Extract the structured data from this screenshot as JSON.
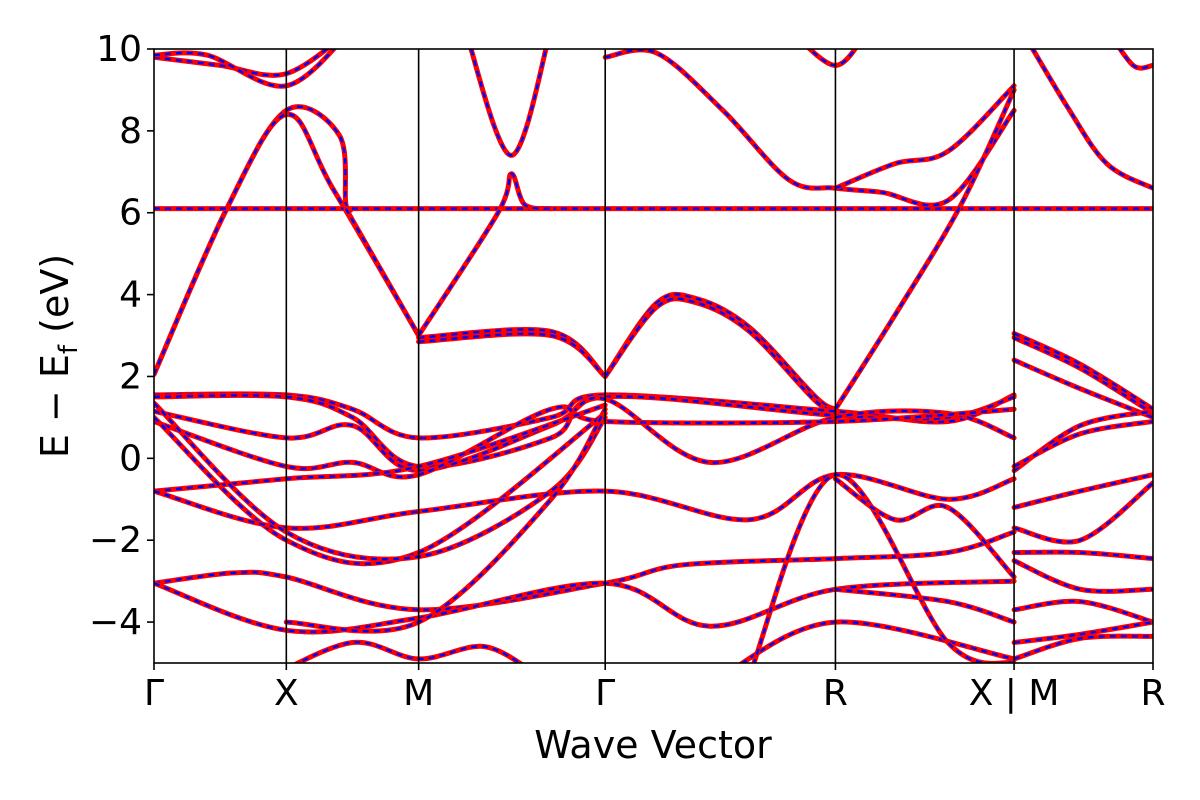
{
  "chart_data": {
    "type": "line",
    "title": "",
    "xlabel": "Wave Vector",
    "ylabel_parts": {
      "E": "E",
      "minus": "−",
      "Ef_main": "E",
      "Ef_sub": "f",
      "unit": "(eV)"
    },
    "ylim": [
      -5,
      10
    ],
    "xlim": [
      0,
      7.55
    ],
    "yticks": [
      -4,
      -2,
      0,
      2,
      4,
      6,
      8,
      10
    ],
    "ytick_labels": [
      "−4",
      "−2",
      "0",
      "2",
      "4",
      "6",
      "8",
      "10"
    ],
    "kpoints": [
      {
        "label": "Γ",
        "x": 0.0
      },
      {
        "label": "X",
        "x": 1.0
      },
      {
        "label": "M",
        "x": 2.0
      },
      {
        "label": "Γ",
        "x": 3.41
      },
      {
        "label": "R",
        "x": 5.15
      },
      {
        "label": "X | M",
        "x": 6.5
      },
      {
        "label": "R",
        "x": 7.55
      }
    ],
    "grid": false,
    "legend": "none",
    "colors": {
      "band_a": "#ff0000",
      "band_b": "#0000ff",
      "axis": "#000000"
    },
    "series": [
      {
        "style": "solid",
        "points": [
          [
            0,
            9.8
          ],
          [
            0.5,
            9.6
          ],
          [
            1,
            9.4
          ],
          [
            1.5,
            10.5
          ]
        ]
      },
      {
        "style": "solid",
        "points": [
          [
            0,
            9.85
          ],
          [
            0.4,
            9.85
          ],
          [
            1,
            9.1
          ],
          [
            1.5,
            10.5
          ]
        ]
      },
      {
        "style": "solid",
        "points": [
          [
            0,
            2.05
          ],
          [
            0.55,
            6.1
          ],
          [
            1,
            8.5
          ],
          [
            1.4,
            7.9
          ],
          [
            1.45,
            6.2
          ],
          [
            1.5,
            6.1
          ]
        ]
      },
      {
        "style": "solid",
        "points": [
          [
            0,
            2.05
          ],
          [
            0.55,
            6.1
          ],
          [
            1,
            8.4
          ],
          [
            1.35,
            6.6
          ],
          [
            2,
            3.0
          ]
        ]
      },
      {
        "style": "solid",
        "points": [
          [
            0,
            6.1
          ],
          [
            7.55,
            6.1
          ]
        ]
      },
      {
        "style": "solid",
        "points": [
          [
            1.45,
            6.1
          ],
          [
            2,
            3.0
          ]
        ]
      },
      {
        "style": "solid",
        "points": [
          [
            2,
            2.95
          ],
          [
            3,
            3.1
          ],
          [
            3.41,
            2.0
          ]
        ]
      },
      {
        "style": "solid",
        "points": [
          [
            2,
            2.85
          ],
          [
            3,
            3.0
          ],
          [
            3.41,
            2.0
          ]
        ]
      },
      {
        "style": "solid",
        "points": [
          [
            2,
            3.0
          ],
          [
            2.6,
            6.0
          ],
          [
            2.7,
            6.95
          ],
          [
            2.8,
            6.2
          ],
          [
            3,
            6.1
          ]
        ]
      },
      {
        "style": "solid",
        "points": [
          [
            2.35,
            10.5
          ],
          [
            2.7,
            7.4
          ],
          [
            3.0,
            10.5
          ]
        ]
      },
      {
        "style": "solid",
        "points": [
          [
            3.41,
            9.8
          ],
          [
            3.8,
            9.9
          ],
          [
            4.3,
            8.5
          ],
          [
            4.8,
            6.8
          ],
          [
            5.15,
            6.6
          ],
          [
            5.5,
            6.5
          ],
          [
            6,
            6.3
          ],
          [
            6.5,
            8.5
          ]
        ]
      },
      {
        "style": "solid",
        "points": [
          [
            5.15,
            6.6
          ],
          [
            5.6,
            7.2
          ],
          [
            6.0,
            7.5
          ],
          [
            6.5,
            9.1
          ]
        ]
      },
      {
        "style": "solid",
        "points": [
          [
            4.8,
            10.5
          ],
          [
            5.15,
            9.6
          ],
          [
            5.4,
            10.5
          ]
        ]
      },
      {
        "style": "solid",
        "points": [
          [
            3.41,
            2.0
          ],
          [
            3.8,
            3.8
          ],
          [
            4.1,
            3.9
          ],
          [
            4.5,
            3.2
          ],
          [
            5.0,
            1.5
          ],
          [
            5.15,
            1.2
          ]
        ]
      },
      {
        "style": "solid",
        "points": [
          [
            3.41,
            2.0
          ],
          [
            3.8,
            3.7
          ],
          [
            4.1,
            3.8
          ],
          [
            4.5,
            3.1
          ],
          [
            5.0,
            1.4
          ],
          [
            5.15,
            1.2
          ]
        ]
      },
      {
        "style": "solid",
        "points": [
          [
            5.15,
            1.2
          ],
          [
            5.6,
            3.5
          ],
          [
            6.1,
            6.2
          ],
          [
            6.5,
            9.0
          ]
        ]
      },
      {
        "style": "solid",
        "points": [
          [
            0,
            1.55
          ],
          [
            1,
            1.55
          ],
          [
            1.5,
            1.2
          ],
          [
            2,
            0.5
          ],
          [
            3.0,
            1.0
          ],
          [
            3.41,
            1.55
          ],
          [
            5.15,
            1.15
          ],
          [
            6,
            0.9
          ],
          [
            6.5,
            1.55
          ]
        ]
      },
      {
        "style": "solid",
        "points": [
          [
            0,
            1.5
          ],
          [
            1,
            1.5
          ],
          [
            1.5,
            1.0
          ],
          [
            2,
            -0.2
          ],
          [
            3.0,
            0.5
          ],
          [
            3.41,
            1.5
          ],
          [
            5.15,
            1.05
          ],
          [
            6,
            1.0
          ],
          [
            6.5,
            1.5
          ]
        ]
      },
      {
        "style": "solid",
        "points": [
          [
            0,
            1.15
          ],
          [
            1,
            0.5
          ],
          [
            1.5,
            0.8
          ],
          [
            2,
            -0.3
          ],
          [
            3.0,
            0.8
          ],
          [
            3.41,
            1.45
          ],
          [
            4.2,
            -0.1
          ],
          [
            5.15,
            1.0
          ],
          [
            6,
            1.1
          ],
          [
            6.5,
            0.5
          ]
        ]
      },
      {
        "style": "solid",
        "points": [
          [
            0,
            0.9
          ],
          [
            1,
            -0.2
          ],
          [
            1.5,
            -0.1
          ],
          [
            2,
            -0.4
          ],
          [
            3.0,
            1.2
          ],
          [
            3.41,
            0.9
          ],
          [
            5.15,
            0.9
          ],
          [
            6.5,
            1.2
          ]
        ]
      },
      {
        "style": "solid",
        "points": [
          [
            0,
            -0.8
          ],
          [
            1,
            -0.5
          ],
          [
            2,
            -0.2
          ],
          [
            3.41,
            1.3
          ]
        ]
      },
      {
        "style": "solid",
        "points": [
          [
            0,
            1.0
          ],
          [
            1,
            -2.0
          ],
          [
            2,
            -2.3
          ],
          [
            3.41,
            1.1
          ]
        ]
      },
      {
        "style": "solid",
        "points": [
          [
            0,
            -0.8
          ],
          [
            1,
            -1.7
          ],
          [
            2,
            -1.3
          ],
          [
            3.41,
            -0.8
          ],
          [
            4.5,
            -1.5
          ],
          [
            5.15,
            -0.4
          ],
          [
            6,
            -1.0
          ],
          [
            6.5,
            -0.5
          ]
        ]
      },
      {
        "style": "solid",
        "points": [
          [
            0,
            1.35
          ],
          [
            1,
            -1.8
          ],
          [
            2,
            -2.4
          ],
          [
            3.0,
            -0.8
          ],
          [
            3.41,
            1.0
          ]
        ]
      },
      {
        "style": "solid",
        "points": [
          [
            0,
            -3.05
          ],
          [
            0.6,
            -2.8
          ],
          [
            1,
            -2.9
          ],
          [
            2,
            -3.7
          ],
          [
            3.41,
            -3.05
          ],
          [
            4.0,
            -2.6
          ],
          [
            5.15,
            -2.45
          ],
          [
            6,
            -2.3
          ],
          [
            6.5,
            -1.8
          ]
        ]
      },
      {
        "style": "solid",
        "points": [
          [
            0,
            -3.05
          ],
          [
            1,
            -4.2
          ],
          [
            2,
            -3.9
          ],
          [
            3.41,
            -3.05
          ],
          [
            4.2,
            -4.1
          ],
          [
            5.15,
            -3.2
          ],
          [
            6.5,
            -3.0
          ]
        ]
      },
      {
        "style": "solid",
        "points": [
          [
            1,
            -4.0
          ],
          [
            2,
            -4.0
          ],
          [
            3.0,
            -1.0
          ],
          [
            3.41,
            1.2
          ]
        ]
      },
      {
        "style": "solid",
        "points": [
          [
            0.9,
            -5.3
          ],
          [
            1.5,
            -4.5
          ],
          [
            2,
            -4.9
          ],
          [
            2.5,
            -4.6
          ],
          [
            2.9,
            -5.3
          ]
        ]
      },
      {
        "style": "solid",
        "points": [
          [
            4.3,
            -5.3
          ],
          [
            5.15,
            -4.0
          ],
          [
            6.5,
            -4.9
          ]
        ]
      },
      {
        "style": "solid",
        "points": [
          [
            4.5,
            -5.3
          ],
          [
            5.15,
            -0.4
          ],
          [
            6,
            -4.5
          ],
          [
            6.5,
            -5.0
          ]
        ]
      },
      {
        "style": "solid",
        "points": [
          [
            5.15,
            -0.5
          ],
          [
            5.6,
            -1.5
          ],
          [
            6.0,
            -1.2
          ],
          [
            6.5,
            -2.9
          ]
        ]
      },
      {
        "style": "solid",
        "points": [
          [
            5.15,
            -3.2
          ],
          [
            6,
            -3.5
          ],
          [
            6.5,
            -4.0
          ]
        ]
      },
      {
        "style": "solid",
        "points": [
          [
            6.5,
            3.05
          ],
          [
            7.0,
            2.3
          ],
          [
            7.55,
            1.2
          ]
        ]
      },
      {
        "style": "solid",
        "points": [
          [
            6.5,
            2.95
          ],
          [
            7.0,
            2.2
          ],
          [
            7.55,
            1.1
          ]
        ]
      },
      {
        "style": "solid",
        "points": [
          [
            6.5,
            2.4
          ],
          [
            7.0,
            1.7
          ],
          [
            7.55,
            1.0
          ]
        ]
      },
      {
        "style": "solid",
        "points": [
          [
            6.5,
            -0.3
          ],
          [
            7.0,
            0.8
          ],
          [
            7.55,
            1.15
          ]
        ]
      },
      {
        "style": "solid",
        "points": [
          [
            6.5,
            -0.2
          ],
          [
            7.0,
            0.6
          ],
          [
            7.55,
            0.9
          ]
        ]
      },
      {
        "style": "solid",
        "points": [
          [
            6.5,
            -1.2
          ],
          [
            7.0,
            -0.8
          ],
          [
            7.55,
            -0.4
          ]
        ]
      },
      {
        "style": "solid",
        "points": [
          [
            6.5,
            -1.7
          ],
          [
            7.0,
            -2.0
          ],
          [
            7.55,
            -0.6
          ]
        ]
      },
      {
        "style": "solid",
        "points": [
          [
            6.5,
            -2.3
          ],
          [
            7.0,
            -2.3
          ],
          [
            7.55,
            -2.45
          ]
        ]
      },
      {
        "style": "solid",
        "points": [
          [
            6.5,
            -2.5
          ],
          [
            7.0,
            -3.2
          ],
          [
            7.55,
            -3.2
          ]
        ]
      },
      {
        "style": "solid",
        "points": [
          [
            6.5,
            -3.7
          ],
          [
            7.0,
            -3.5
          ],
          [
            7.55,
            -4.0
          ]
        ]
      },
      {
        "style": "solid",
        "points": [
          [
            6.5,
            -4.5
          ],
          [
            7.0,
            -4.3
          ],
          [
            7.55,
            -4.0
          ]
        ]
      },
      {
        "style": "solid",
        "points": [
          [
            6.5,
            -4.9
          ],
          [
            7.0,
            -4.4
          ],
          [
            7.55,
            -4.35
          ]
        ]
      },
      {
        "style": "solid",
        "points": [
          [
            6.55,
            10.5
          ],
          [
            6.9,
            8.6
          ],
          [
            7.2,
            7.2
          ],
          [
            7.55,
            6.6
          ]
        ]
      },
      {
        "style": "solid",
        "points": [
          [
            7.2,
            10.5
          ],
          [
            7.4,
            9.6
          ],
          [
            7.55,
            9.6
          ]
        ]
      }
    ]
  }
}
